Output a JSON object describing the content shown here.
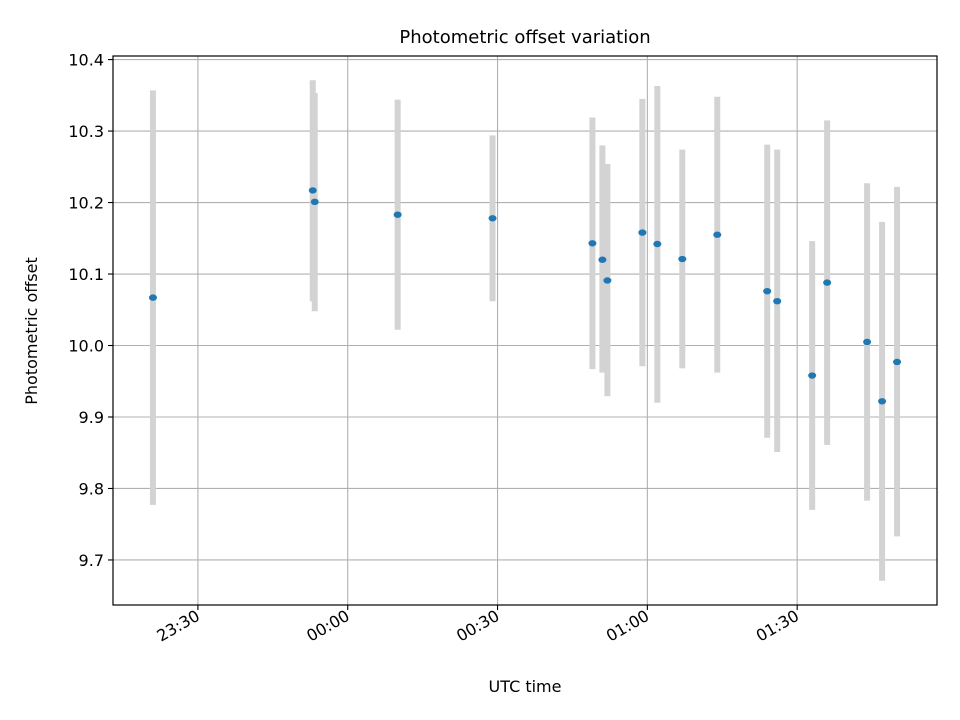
{
  "chart_data": {
    "type": "scatter",
    "title": "Photometric offset variation",
    "xlabel": "UTC time",
    "ylabel": "Photometric offset",
    "x_axis": {
      "kind": "time",
      "range": [
        "23:13",
        "01:58"
      ],
      "ticks": [
        "23:30",
        "00:00",
        "00:30",
        "01:00",
        "01:30"
      ]
    },
    "y_axis": {
      "range": [
        9.637,
        10.405
      ],
      "ticks": [
        "9.7",
        "9.8",
        "9.9",
        "10.0",
        "10.1",
        "10.2",
        "10.3",
        "10.4"
      ]
    },
    "grid": true,
    "colors": {
      "point": "#1f77b4",
      "errorbar": "#d3d3d3",
      "grid": "#b0b0b0"
    },
    "points": [
      {
        "time": "23:21",
        "y": 10.067,
        "low": 9.777,
        "high": 10.357
      },
      {
        "time": "23:53",
        "y": 10.217,
        "low": 10.062,
        "high": 10.371
      },
      {
        "time": "23:53",
        "y": 10.201,
        "low": 10.048,
        "high": 10.353
      },
      {
        "time": "00:10",
        "y": 10.183,
        "low": 10.022,
        "high": 10.344
      },
      {
        "time": "00:29",
        "y": 10.178,
        "low": 10.062,
        "high": 10.294
      },
      {
        "time": "00:49",
        "y": 10.143,
        "low": 9.967,
        "high": 10.319
      },
      {
        "time": "00:51",
        "y": 10.12,
        "low": 9.962,
        "high": 10.28
      },
      {
        "time": "00:52",
        "y": 10.091,
        "low": 9.929,
        "high": 10.254
      },
      {
        "time": "00:59",
        "y": 10.158,
        "low": 9.971,
        "high": 10.345
      },
      {
        "time": "01:02",
        "y": 10.142,
        "low": 9.92,
        "high": 10.363
      },
      {
        "time": "01:07",
        "y": 10.121,
        "low": 9.968,
        "high": 10.274
      },
      {
        "time": "01:14",
        "y": 10.155,
        "low": 9.962,
        "high": 10.348
      },
      {
        "time": "01:24",
        "y": 10.076,
        "low": 9.871,
        "high": 10.281
      },
      {
        "time": "01:26",
        "y": 10.062,
        "low": 9.851,
        "high": 10.274
      },
      {
        "time": "01:33",
        "y": 9.958,
        "low": 9.77,
        "high": 10.146
      },
      {
        "time": "01:36",
        "y": 10.088,
        "low": 9.861,
        "high": 10.315
      },
      {
        "time": "01:44",
        "y": 10.005,
        "low": 9.783,
        "high": 10.227
      },
      {
        "time": "01:47",
        "y": 9.922,
        "low": 9.671,
        "high": 10.173
      },
      {
        "time": "01:50",
        "y": 9.977,
        "low": 9.733,
        "high": 10.222
      }
    ]
  }
}
